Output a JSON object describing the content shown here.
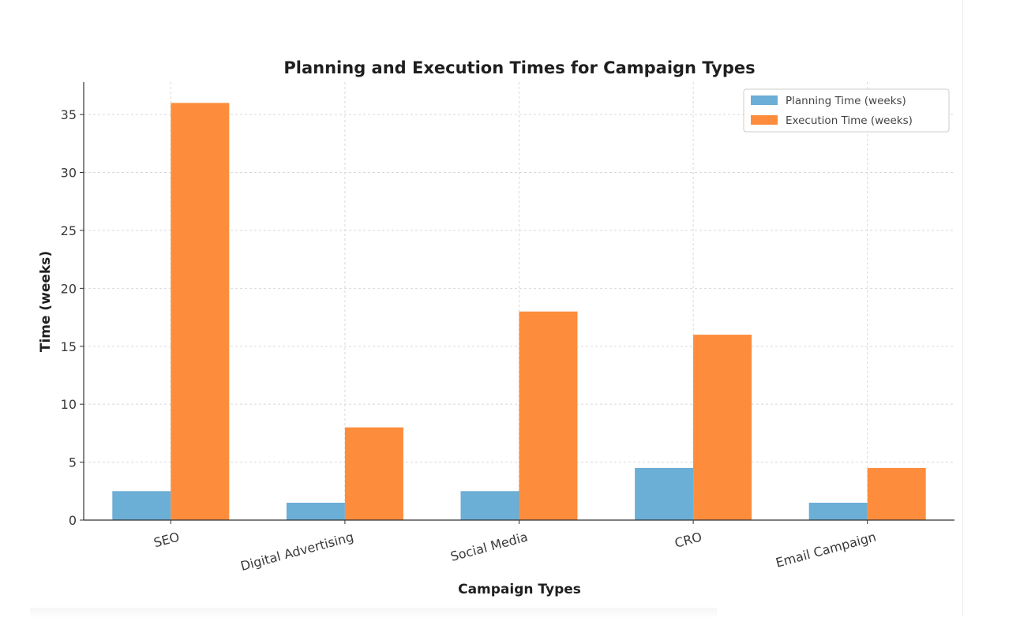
{
  "chart_data": {
    "type": "bar",
    "title": "Planning and Execution Times for Campaign Types",
    "xlabel": "Campaign Types",
    "ylabel": "Time (weeks)",
    "categories": [
      "SEO",
      "Digital Advertising",
      "Social Media",
      "CRO",
      "Email Campaign"
    ],
    "series": [
      {
        "name": "Planning Time (weeks)",
        "color": "#6baed6",
        "values": [
          2.5,
          1.5,
          2.5,
          4.5,
          1.5
        ]
      },
      {
        "name": "Execution Time (weeks)",
        "color": "#fd8d3c",
        "values": [
          36,
          8,
          18,
          16,
          4.5
        ]
      }
    ],
    "ylim": [
      0,
      37.8
    ],
    "yticks": [
      0,
      5,
      10,
      15,
      20,
      25,
      30,
      35
    ],
    "grid": true,
    "legend_position": "top-right"
  }
}
